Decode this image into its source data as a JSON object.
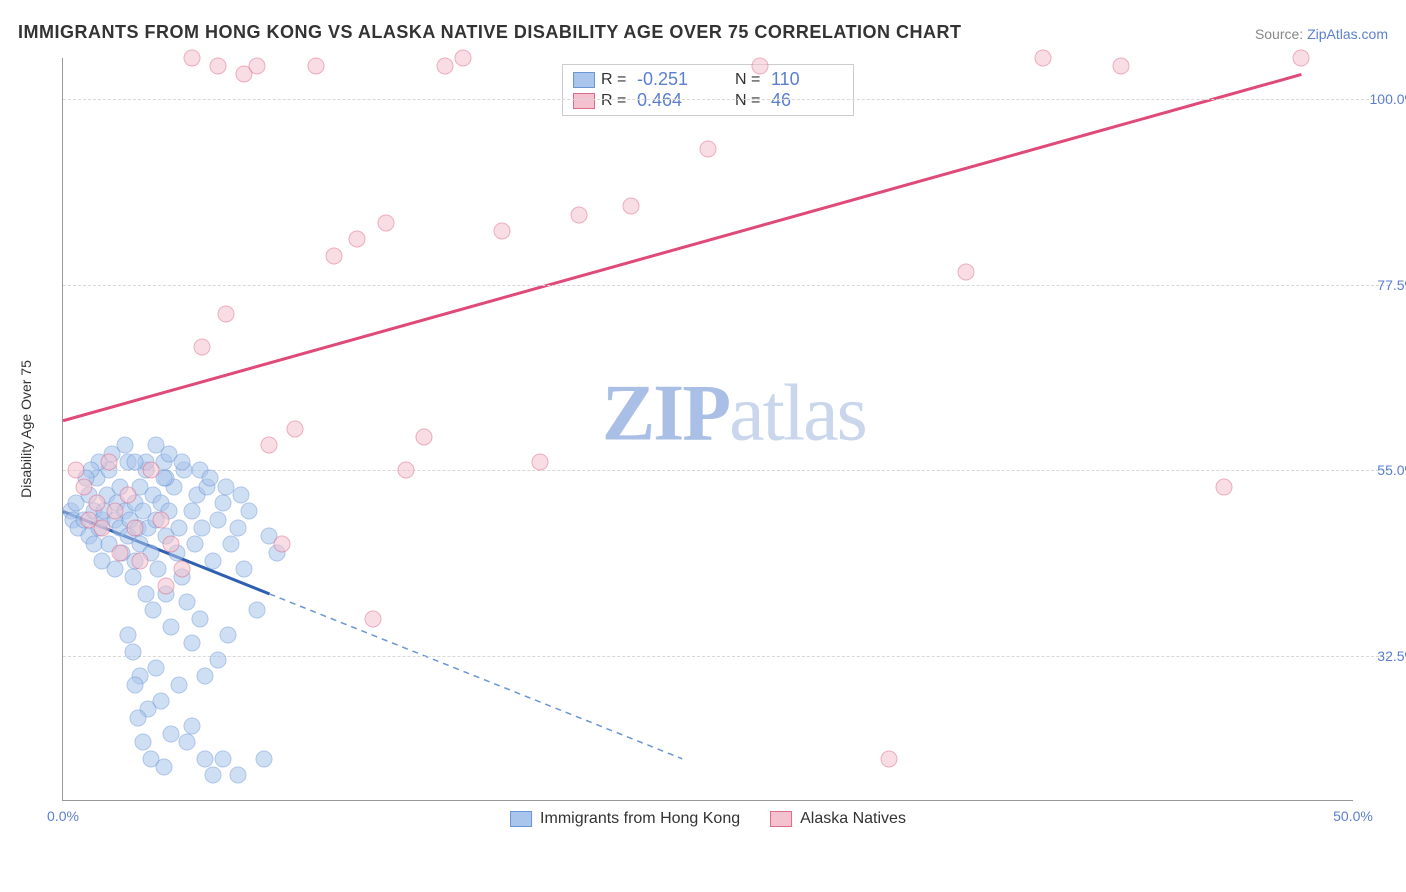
{
  "title": "IMMIGRANTS FROM HONG KONG VS ALASKA NATIVE DISABILITY AGE OVER 75 CORRELATION CHART",
  "source_prefix": "Source: ",
  "source_name": "ZipAtlas.com",
  "y_axis_label": "Disability Age Over 75",
  "watermark_a": "ZIP",
  "watermark_b": "atlas",
  "chart": {
    "type": "scatter-regression",
    "xlim": [
      0,
      50
    ],
    "ylim": [
      15,
      105
    ],
    "yticks": [
      {
        "v": 32.5,
        "label": "32.5%"
      },
      {
        "v": 55.0,
        "label": "55.0%"
      },
      {
        "v": 77.5,
        "label": "77.5%"
      },
      {
        "v": 100.0,
        "label": "100.0%"
      }
    ],
    "xticks": [
      {
        "v": 0,
        "label": "0.0%"
      },
      {
        "v": 50,
        "label": "50.0%"
      }
    ],
    "series": [
      {
        "name": "Immigrants from Hong Kong",
        "color_fill": "#a9c5eb",
        "color_stroke": "#6b96d6",
        "fill_opacity": 0.55,
        "r_value": "-0.251",
        "n_value": "110",
        "regression": {
          "x1": 0,
          "y1": 50,
          "x2": 8,
          "y2": 40,
          "extend_x": 24,
          "extend_y": 20,
          "solid_color": "#2f5fb0",
          "dash_color": "#6b96d6"
        },
        "data_range_x_max": 8.3,
        "points": [
          [
            0.3,
            50
          ],
          [
            0.4,
            49
          ],
          [
            0.5,
            51
          ],
          [
            0.6,
            48
          ],
          [
            0.8,
            49
          ],
          [
            1.0,
            47
          ],
          [
            1.0,
            52
          ],
          [
            1.2,
            50
          ],
          [
            1.2,
            46
          ],
          [
            1.3,
            54
          ],
          [
            1.4,
            48
          ],
          [
            1.5,
            49
          ],
          [
            1.5,
            44
          ],
          [
            1.6,
            50
          ],
          [
            1.7,
            52
          ],
          [
            1.8,
            46
          ],
          [
            1.8,
            55
          ],
          [
            2.0,
            49
          ],
          [
            2.0,
            43
          ],
          [
            2.1,
            51
          ],
          [
            2.2,
            48
          ],
          [
            2.2,
            53
          ],
          [
            2.3,
            45
          ],
          [
            2.4,
            50
          ],
          [
            2.5,
            47
          ],
          [
            2.5,
            56
          ],
          [
            2.6,
            49
          ],
          [
            2.7,
            42
          ],
          [
            2.8,
            51
          ],
          [
            2.8,
            44
          ],
          [
            2.9,
            48
          ],
          [
            3.0,
            53
          ],
          [
            3.0,
            46
          ],
          [
            3.1,
            50
          ],
          [
            3.2,
            40
          ],
          [
            3.2,
            55
          ],
          [
            3.3,
            48
          ],
          [
            3.4,
            45
          ],
          [
            3.5,
            52
          ],
          [
            3.5,
            38
          ],
          [
            3.6,
            49
          ],
          [
            3.7,
            43
          ],
          [
            3.8,
            51
          ],
          [
            3.9,
            56
          ],
          [
            4.0,
            47
          ],
          [
            4.0,
            40
          ],
          [
            4.1,
            50
          ],
          [
            4.2,
            36
          ],
          [
            4.3,
            53
          ],
          [
            4.4,
            45
          ],
          [
            4.5,
            48
          ],
          [
            4.6,
            42
          ],
          [
            4.7,
            55
          ],
          [
            4.8,
            39
          ],
          [
            5.0,
            50
          ],
          [
            5.0,
            34
          ],
          [
            5.1,
            46
          ],
          [
            5.2,
            52
          ],
          [
            5.3,
            37
          ],
          [
            5.4,
            48
          ],
          [
            5.5,
            30
          ],
          [
            5.6,
            53
          ],
          [
            5.8,
            44
          ],
          [
            6.0,
            49
          ],
          [
            6.0,
            32
          ],
          [
            6.2,
            51
          ],
          [
            6.4,
            35
          ],
          [
            6.5,
            46
          ],
          [
            6.8,
            48
          ],
          [
            7.0,
            43
          ],
          [
            7.2,
            50
          ],
          [
            7.5,
            38
          ],
          [
            8.0,
            47
          ],
          [
            8.3,
            45
          ],
          [
            2.7,
            33
          ],
          [
            3.0,
            30
          ],
          [
            2.5,
            35
          ],
          [
            2.8,
            29
          ],
          [
            3.3,
            26
          ],
          [
            3.6,
            31
          ],
          [
            2.9,
            25
          ],
          [
            3.8,
            27
          ],
          [
            4.2,
            23
          ],
          [
            4.5,
            29
          ],
          [
            3.1,
            22
          ],
          [
            5.0,
            24
          ],
          [
            3.4,
            20
          ],
          [
            4.8,
            22
          ],
          [
            5.5,
            20
          ],
          [
            6.2,
            20
          ],
          [
            3.9,
            19
          ],
          [
            5.8,
            18
          ],
          [
            6.8,
            18
          ],
          [
            7.8,
            20
          ],
          [
            4.1,
            57
          ],
          [
            4.6,
            56
          ],
          [
            5.3,
            55
          ],
          [
            2.4,
            58
          ],
          [
            1.9,
            57
          ],
          [
            3.6,
            58
          ],
          [
            4.0,
            54
          ],
          [
            3.2,
            56
          ],
          [
            2.8,
            56
          ],
          [
            3.9,
            54
          ],
          [
            5.7,
            54
          ],
          [
            6.3,
            53
          ],
          [
            6.9,
            52
          ],
          [
            1.4,
            56
          ],
          [
            1.1,
            55
          ],
          [
            0.9,
            54
          ]
        ]
      },
      {
        "name": "Alaska Natives",
        "color_fill": "#f4c2ce",
        "color_stroke": "#e06a8a",
        "fill_opacity": 0.55,
        "r_value": "0.464",
        "n_value": "46",
        "regression": {
          "x1": 0,
          "y1": 61,
          "x2": 48,
          "y2": 103,
          "solid_color": "#e04a78"
        },
        "points": [
          [
            0.5,
            55
          ],
          [
            0.8,
            53
          ],
          [
            1.0,
            49
          ],
          [
            1.3,
            51
          ],
          [
            1.5,
            48
          ],
          [
            1.8,
            56
          ],
          [
            2.0,
            50
          ],
          [
            2.2,
            45
          ],
          [
            2.5,
            52
          ],
          [
            2.8,
            48
          ],
          [
            3.0,
            44
          ],
          [
            3.4,
            55
          ],
          [
            3.8,
            49
          ],
          [
            4.2,
            46
          ],
          [
            4.0,
            41
          ],
          [
            4.6,
            43
          ],
          [
            5.0,
            105
          ],
          [
            5.4,
            70
          ],
          [
            6.0,
            104
          ],
          [
            6.3,
            74
          ],
          [
            7.0,
            103
          ],
          [
            7.5,
            104
          ],
          [
            8.0,
            58
          ],
          [
            8.5,
            46
          ],
          [
            9.0,
            60
          ],
          [
            9.8,
            104
          ],
          [
            10.5,
            81
          ],
          [
            11.4,
            83
          ],
          [
            12.0,
            37
          ],
          [
            12.5,
            85
          ],
          [
            13.3,
            55
          ],
          [
            14.0,
            59
          ],
          [
            14.8,
            104
          ],
          [
            15.5,
            105
          ],
          [
            17.0,
            84
          ],
          [
            18.5,
            56
          ],
          [
            20.0,
            86
          ],
          [
            22.0,
            87
          ],
          [
            25.0,
            94
          ],
          [
            27.0,
            104
          ],
          [
            32.0,
            20
          ],
          [
            35.0,
            79
          ],
          [
            38.0,
            105
          ],
          [
            41.0,
            104
          ],
          [
            45.0,
            53
          ],
          [
            48.0,
            105
          ]
        ]
      }
    ]
  }
}
